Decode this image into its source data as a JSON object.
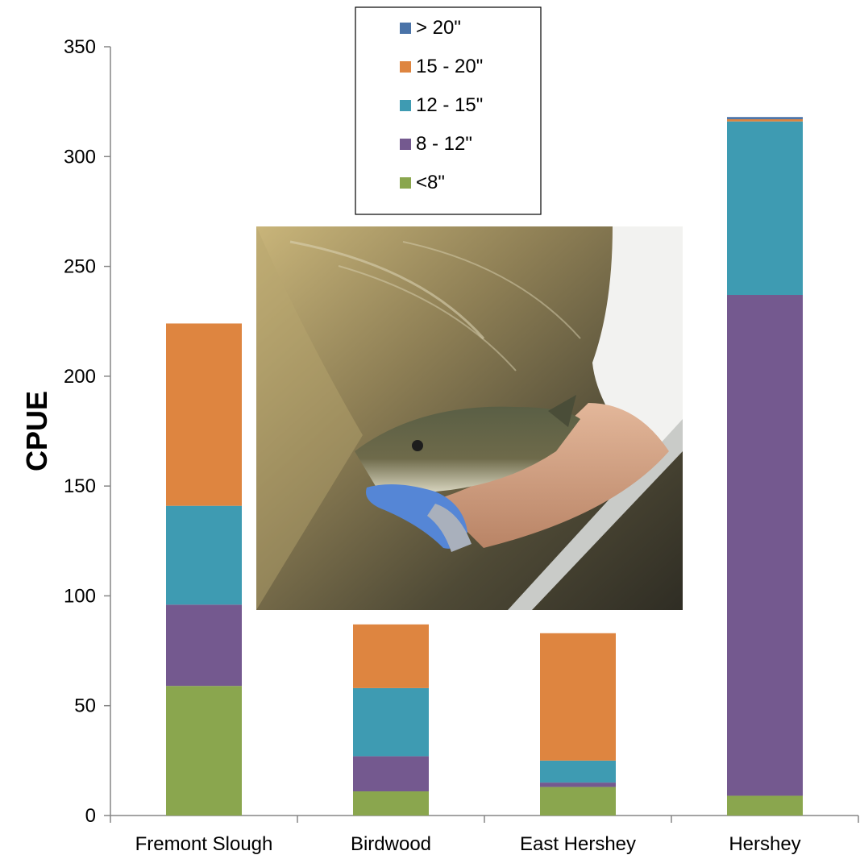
{
  "chart_data": {
    "type": "bar",
    "stacked": true,
    "ylabel": "CPUE",
    "xlabel": "",
    "ylim": [
      0,
      350
    ],
    "yticks": [
      0,
      50,
      100,
      150,
      200,
      250,
      300,
      350
    ],
    "grid": false,
    "legend_position": "top-center",
    "categories": [
      "Fremont Slough",
      "Birdwood",
      "East Hershey",
      "Hershey"
    ],
    "series": [
      {
        "name": "<8\"",
        "color": "#8aa64e",
        "values": [
          59,
          11,
          13,
          9
        ]
      },
      {
        "name": "8 - 12\"",
        "color": "#74598f",
        "values": [
          37,
          16,
          2,
          228
        ]
      },
      {
        "name": "12 - 15\"",
        "color": "#3e9bb2",
        "values": [
          45,
          31,
          10,
          79
        ]
      },
      {
        "name": "15 - 20\"",
        "color": "#de8540",
        "values": [
          83,
          29,
          58,
          1
        ]
      },
      {
        "name": "> 20\"",
        "color": "#4a73a8",
        "values": [
          0,
          0,
          0,
          1
        ]
      }
    ],
    "legend_order": [
      "> 20\"",
      "15 - 20\"",
      "12 - 15\"",
      "8 - 12\"",
      "<8\""
    ]
  },
  "photo": {
    "icon": "fish-release-photo"
  }
}
